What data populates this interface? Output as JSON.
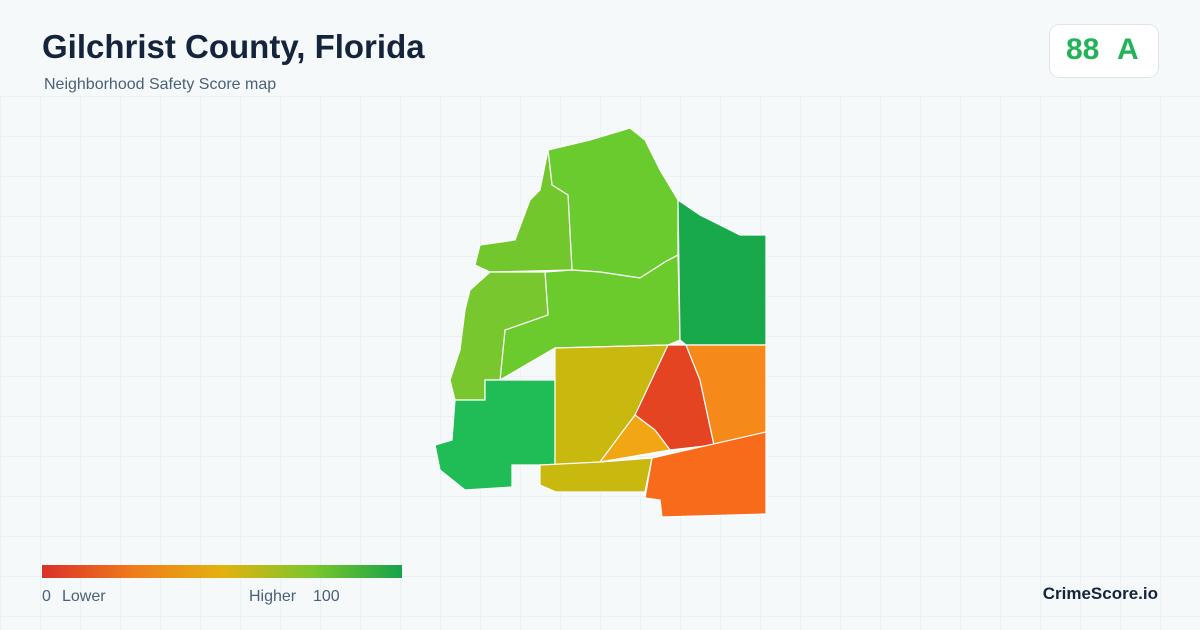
{
  "header": {
    "title": "Gilchrist County, Florida",
    "subtitle": "Neighborhood Safety Score map"
  },
  "score": {
    "value": "88",
    "grade": "A"
  },
  "legend": {
    "min": "0",
    "min_label": "Lower",
    "max_label": "Higher",
    "max": "100"
  },
  "brand": "CrimeScore.io"
}
